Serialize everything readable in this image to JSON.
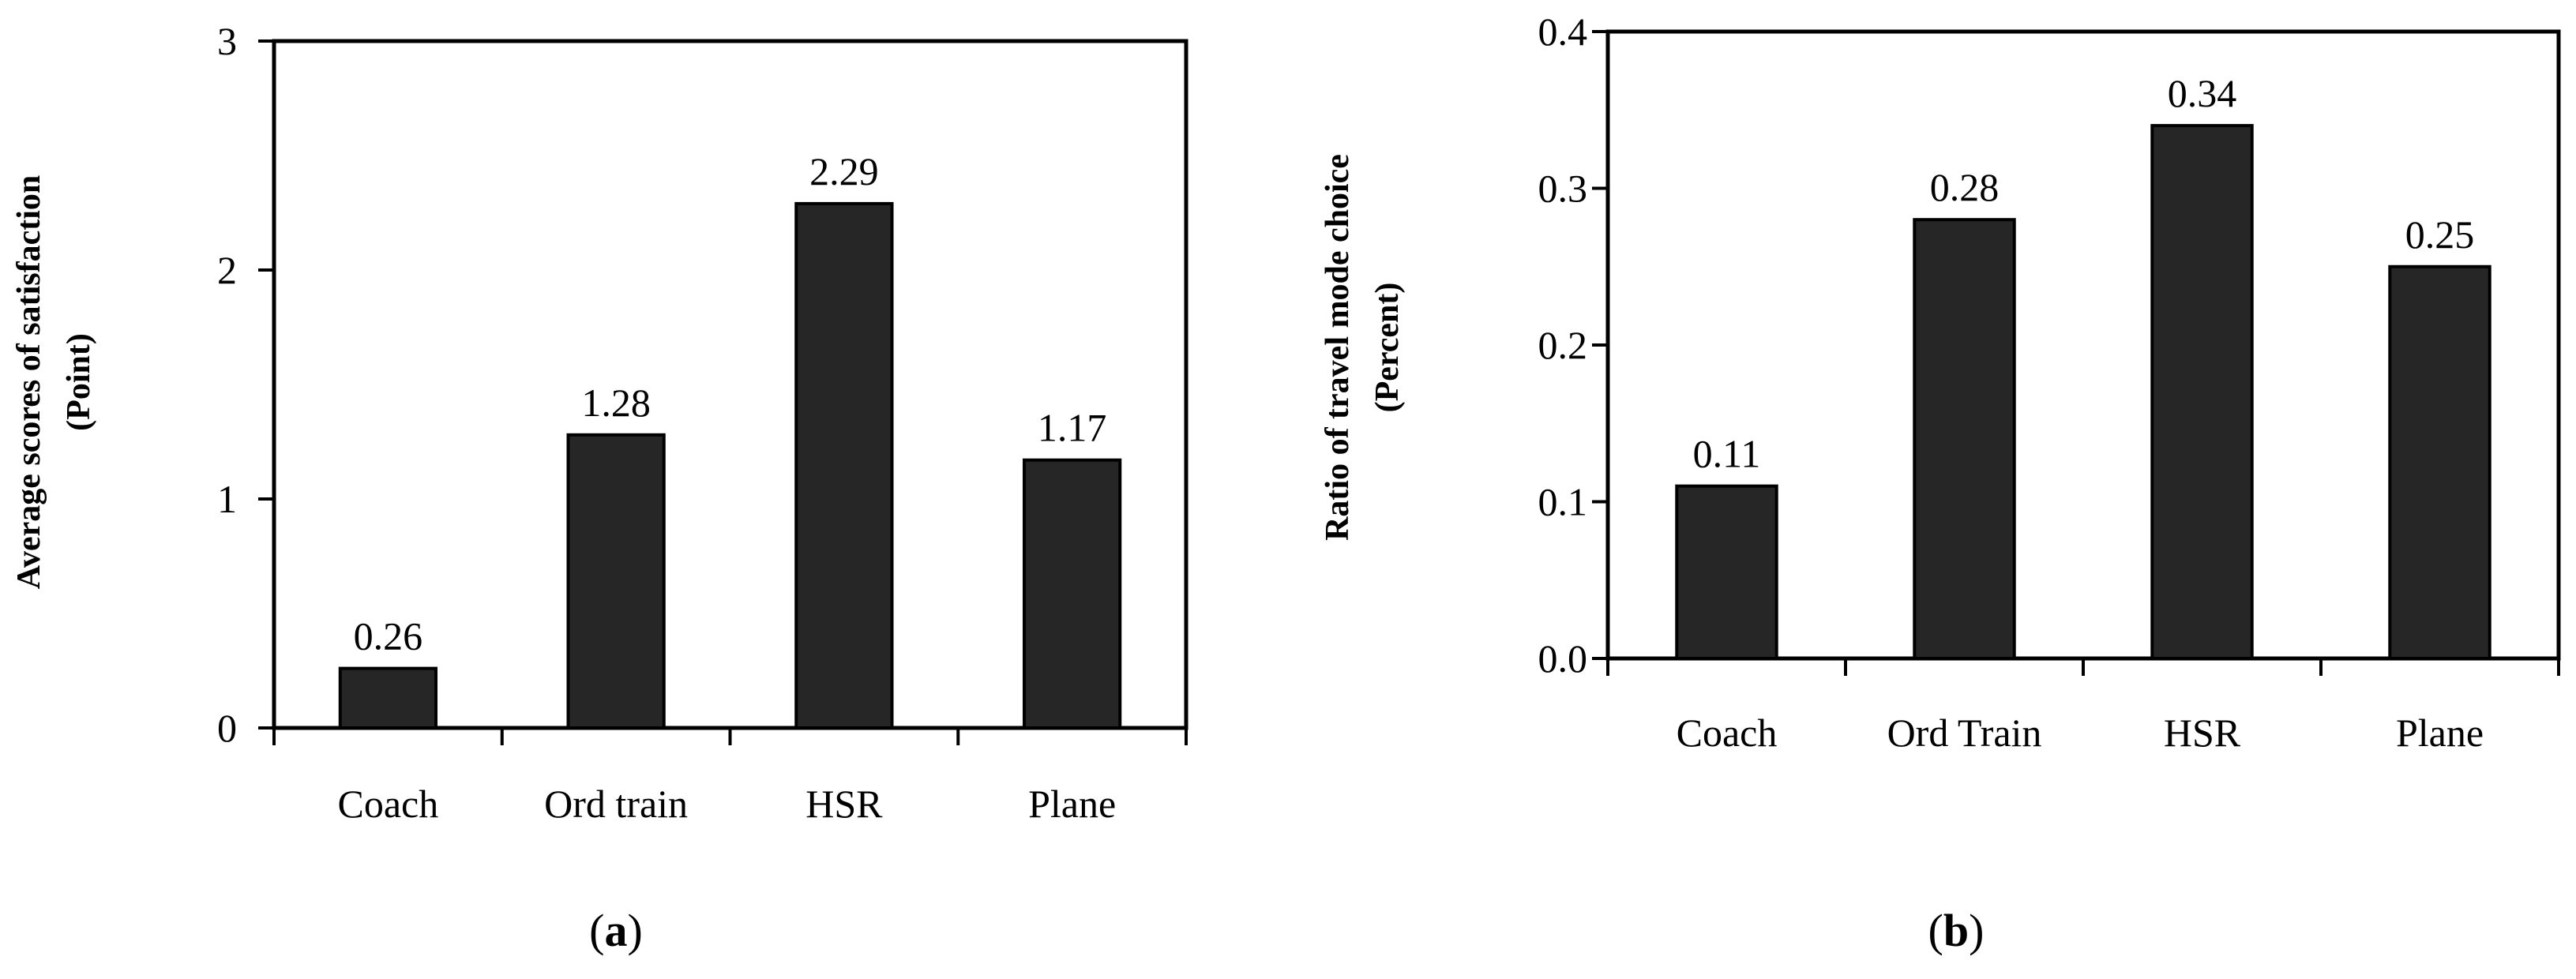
{
  "chart_data": [
    {
      "type": "bar",
      "panel": "a",
      "categories": [
        "Coach",
        "Ord train",
        "HSR",
        "Plane"
      ],
      "values": [
        0.26,
        1.28,
        2.29,
        1.17
      ],
      "data_labels": [
        "0.26",
        "1.28",
        "2.29",
        "1.17"
      ],
      "ylabel": "Average scores of satisfaction",
      "ylabel_unit": "(Point)",
      "ylim": [
        0,
        3
      ],
      "yticks": [
        0,
        1,
        2,
        3
      ],
      "ytick_labels": [
        "0",
        "1",
        "2",
        "3"
      ],
      "bar_color": "#262626",
      "grid": false
    },
    {
      "type": "bar",
      "panel": "b",
      "categories": [
        "Coach",
        "Ord Train",
        "HSR",
        "Plane"
      ],
      "values": [
        0.11,
        0.28,
        0.34,
        0.25
      ],
      "data_labels": [
        "0.11",
        "0.28",
        "0.34",
        "0.25"
      ],
      "ylabel": "Ratio of travel mode choice",
      "ylabel_unit": "(Percent)",
      "ylim": [
        0,
        0.4
      ],
      "yticks": [
        0,
        0.1,
        0.2,
        0.3,
        0.4
      ],
      "ytick_labels": [
        "0.0",
        "0.1",
        "0.2",
        "0.3",
        "0.4"
      ],
      "bar_color": "#262626",
      "grid": false
    }
  ],
  "captions": [
    {
      "open": "(",
      "letter": "a",
      "close": ")"
    },
    {
      "open": "(",
      "letter": "b",
      "close": ")"
    }
  ]
}
